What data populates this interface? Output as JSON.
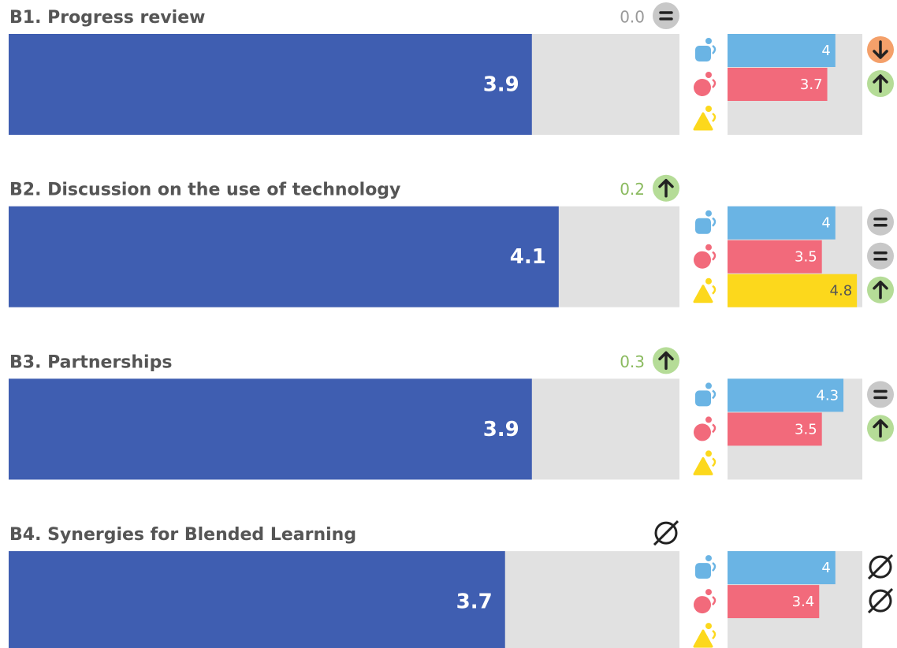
{
  "xlim": [
    0,
    5
  ],
  "main_color": "#3f5eb1",
  "track_color": "#e1e1e1",
  "group_colors": [
    "#6ab4e4",
    "#f26a7b",
    "#fcd81c"
  ],
  "group_label_colors": [
    "#ffffff",
    "#ffffff",
    "#555555"
  ],
  "sections": [
    {
      "title": "B1. Progress review",
      "change_label": "0.0",
      "change_trend": "equal",
      "value": 3.9,
      "groups": [
        {
          "value": 4,
          "trend": "down"
        },
        {
          "value": 3.7,
          "trend": "up"
        },
        {
          "value": null,
          "trend": null
        }
      ]
    },
    {
      "title": "B2. Discussion on the use of technology",
      "change_label": "0.2",
      "change_trend": "up",
      "value": 4.1,
      "groups": [
        {
          "value": 4,
          "trend": "equal"
        },
        {
          "value": 3.5,
          "trend": "equal"
        },
        {
          "value": 4.8,
          "trend": "up"
        }
      ]
    },
    {
      "title": "B3. Partnerships",
      "change_label": "0.3",
      "change_trend": "up",
      "value": 3.9,
      "groups": [
        {
          "value": 4.3,
          "trend": "equal"
        },
        {
          "value": 3.5,
          "trend": "up"
        },
        {
          "value": null,
          "trend": null
        }
      ]
    },
    {
      "title": "B4. Synergies for Blended Learning",
      "change_trend": "none",
      "value": 3.7,
      "groups": [
        {
          "value": 4,
          "trend": "none"
        },
        {
          "value": 3.4,
          "trend": "none"
        },
        {
          "value": null,
          "trend": null
        }
      ]
    }
  ]
}
